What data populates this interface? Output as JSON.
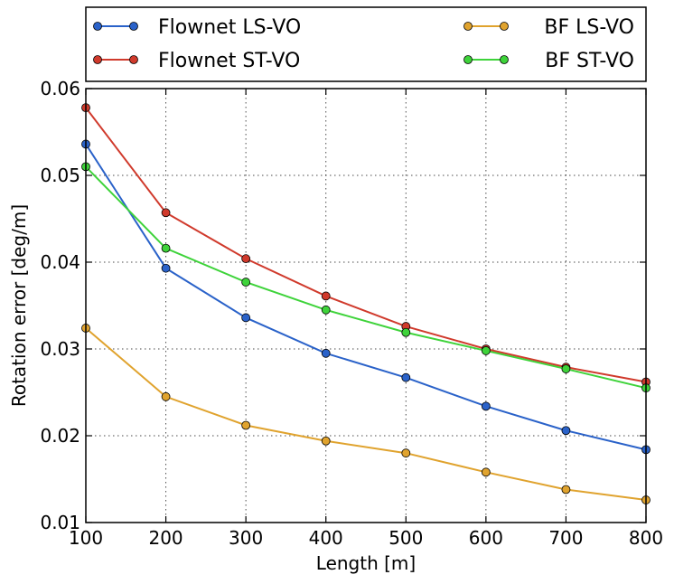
{
  "chart_data": {
    "type": "line",
    "title": "",
    "xlabel": "Length [m]",
    "ylabel": "Rotation error [deg/m]",
    "xlim": [
      100,
      800
    ],
    "ylim": [
      0.01,
      0.06
    ],
    "x": [
      100,
      200,
      300,
      400,
      500,
      600,
      700,
      800
    ],
    "x_tick_labels": [
      "100",
      "200",
      "300",
      "400",
      "500",
      "600",
      "700",
      "800"
    ],
    "y_ticks": [
      0.01,
      0.02,
      0.03,
      0.04,
      0.05,
      0.06
    ],
    "y_tick_labels": [
      "0.01",
      "0.02",
      "0.03",
      "0.04",
      "0.05",
      "0.06"
    ],
    "grid": true,
    "legend_position": "top",
    "series": [
      {
        "name": "Flownet LS-VO",
        "color": "#2a62c9",
        "values": [
          0.0536,
          0.0393,
          0.0336,
          0.0295,
          0.0267,
          0.0234,
          0.0206,
          0.0184
        ]
      },
      {
        "name": "Flownet ST-VO",
        "color": "#d03a2c",
        "values": [
          0.0578,
          0.0457,
          0.0404,
          0.0361,
          0.0326,
          0.03,
          0.0279,
          0.0262
        ]
      },
      {
        "name": "BF LS-VO",
        "color": "#e0a32e",
        "values": [
          0.0324,
          0.0245,
          0.0212,
          0.0194,
          0.018,
          0.0158,
          0.0138,
          0.0126
        ]
      },
      {
        "name": "BF ST-VO",
        "color": "#3ed33a",
        "values": [
          0.051,
          0.0416,
          0.0377,
          0.0345,
          0.0319,
          0.0298,
          0.0277,
          0.0255
        ]
      }
    ]
  }
}
